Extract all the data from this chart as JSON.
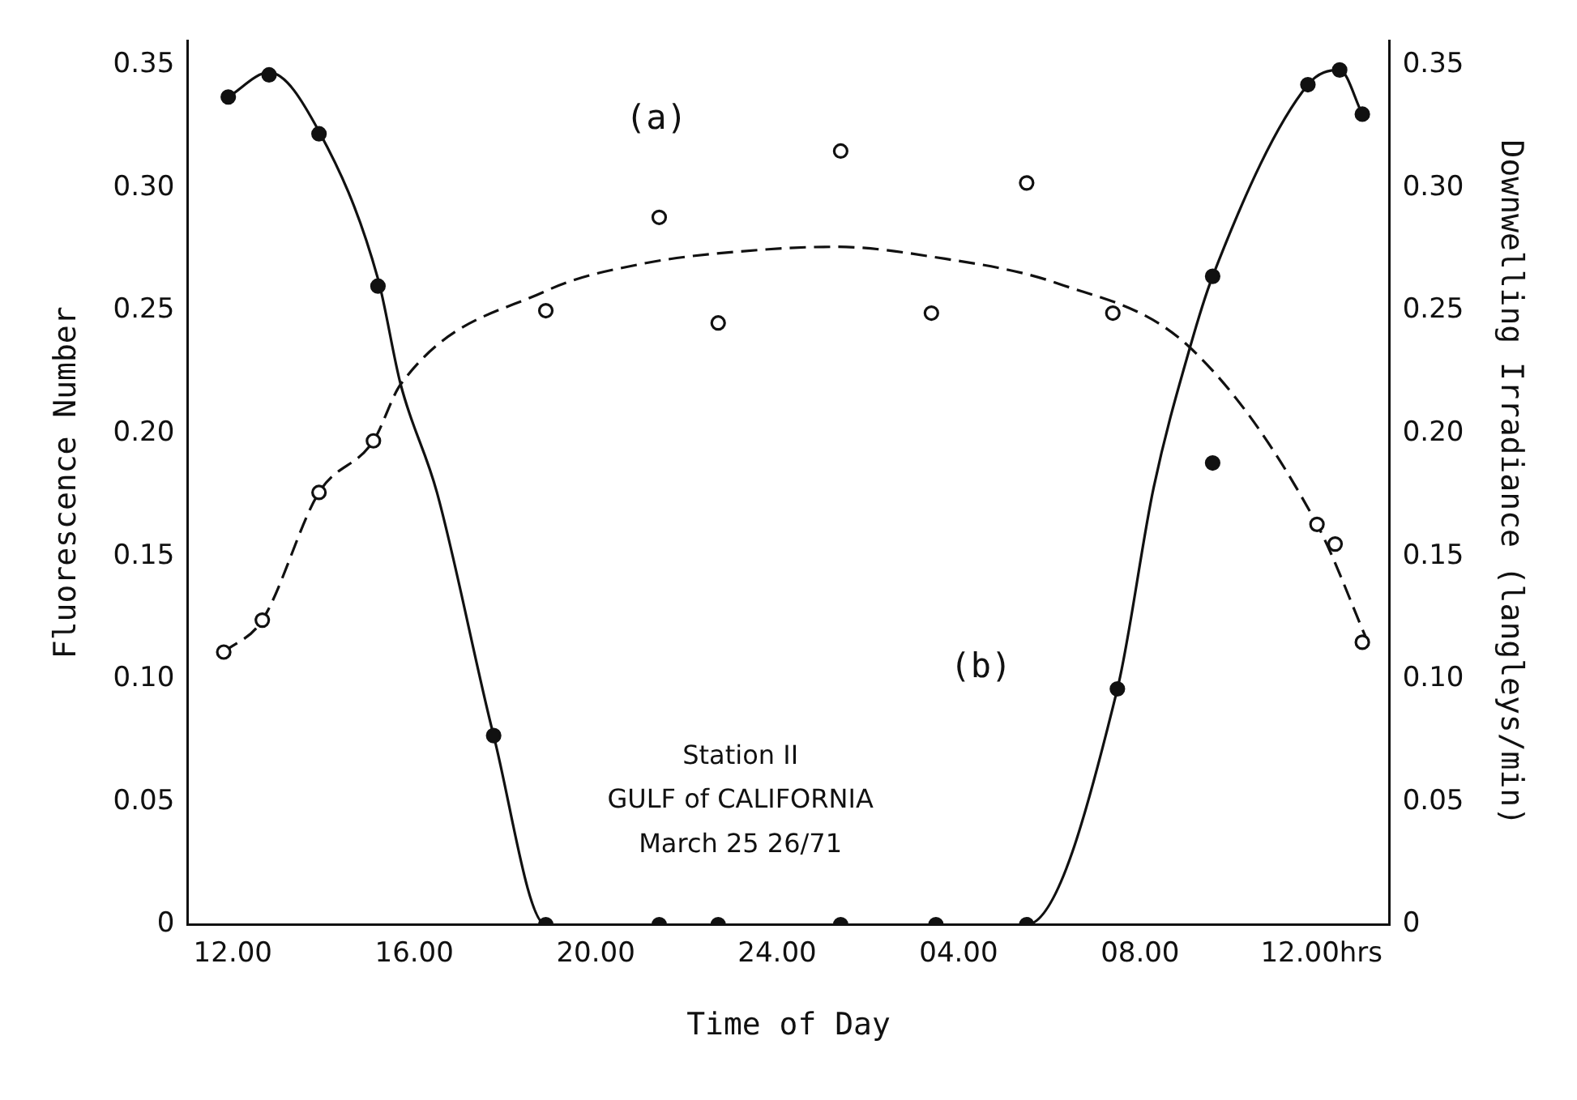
{
  "chart_data": {
    "type": "scatter",
    "xlabel": "Time of Day",
    "ylabel": "Fluorescence Number",
    "y2label": "Downwelling Irradiance (langleys/min)",
    "xlim": [
      "--03-25T11:00",
      "--03-26T13:30"
    ],
    "xticks": [
      {
        "value": "--03-25T12:00",
        "label": "12.00"
      },
      {
        "value": "--03-25T16:00",
        "label": "16.00"
      },
      {
        "value": "--03-25T20:00",
        "label": "20.00"
      },
      {
        "value": "--03-26T00:00",
        "label": "24.00"
      },
      {
        "value": "--03-26T04:00",
        "label": "04.00"
      },
      {
        "value": "--03-26T08:00",
        "label": "08.00"
      },
      {
        "value": "--03-26T12:00",
        "label": "12.00hrs"
      }
    ],
    "ylim": [
      0,
      0.36
    ],
    "yticks": [
      0,
      0.05,
      {
        "value": 0.1,
        "label": "0.10"
      },
      0.15,
      {
        "value": 0.2,
        "label": "0.20"
      },
      0.25,
      {
        "value": 0.3,
        "label": "0.30"
      },
      0.35
    ],
    "y2lim": [
      0,
      0.36
    ],
    "y2ticks": [
      0,
      0.05,
      {
        "value": 0.1,
        "label": "0.10"
      },
      0.15,
      {
        "value": 0.2,
        "label": "0.20"
      },
      0.25,
      {
        "value": 0.3,
        "label": "0.30"
      },
      0.35
    ],
    "grid": false,
    "legend": false,
    "series": [
      {
        "color": "#111111",
        "marker": "circle",
        "x": [
          "--03-25T11:48",
          "--03-25T12:39",
          "--03-25T13:54",
          "--03-25T15:06",
          "--03-25T18:54",
          "--03-25T21:24",
          "--03-25T22:42",
          "--03-26T01:24",
          "--03-26T03:24",
          "--03-26T05:30",
          "--03-26T07:24",
          "--03-26T11:54",
          "--03-26T12:18",
          "--03-26T12:54"
        ],
        "values": [
          0.111,
          0.124,
          0.176,
          0.197,
          0.25,
          0.288,
          0.245,
          0.315,
          0.249,
          0.302,
          0.249,
          0.163,
          0.155,
          0.115
        ]
      },
      {
        "type": "line",
        "color": "#111111",
        "marker": "none",
        "line_style": "dashed",
        "x": [
          "--03-25T11:48",
          "--03-25T12:39",
          "--03-25T13:54",
          "--03-25T15:06",
          "--03-25T15:42",
          "--03-25T18:54",
          "--03-25T21:00",
          "--03-25T23:48",
          "--03-26T01:18",
          "--03-26T03:24",
          "--03-26T06:12",
          "--03-26T09:06",
          "--03-26T11:54",
          "--03-26T13:00"
        ],
        "values": [
          0.111,
          0.124,
          0.176,
          0.197,
          0.22,
          0.258,
          0.269,
          0.275,
          0.276,
          0.272,
          0.261,
          0.235,
          0.163,
          0.116
        ]
      },
      {
        "axis": "y2",
        "color": "#111111",
        "marker": "circle",
        "x": [
          "--03-25T11:54",
          "--03-25T12:48",
          "--03-25T13:54",
          "--03-25T15:12",
          "--03-25T17:45",
          "--03-25T18:54",
          "--03-25T21:24",
          "--03-25T22:42",
          "--03-26T01:24",
          "--03-26T03:30",
          "--03-26T05:30",
          "--03-26T07:30",
          "--03-26T09:36",
          "--03-26T09:36",
          "--03-26T11:42",
          "--03-26T12:24",
          "--03-26T12:54"
        ],
        "values": [
          0.337,
          0.346,
          0.322,
          0.26,
          0.077,
          0,
          0,
          0,
          0,
          0,
          0,
          0.096,
          0.264,
          0.188,
          0.342,
          0.348,
          0.33
        ]
      },
      {
        "type": "line",
        "axis": "y2",
        "color": "#111111",
        "marker": "none",
        "line_style": "solid",
        "x": [
          "--03-25T11:54",
          "--03-25T12:48",
          "--03-25T13:54",
          "--03-25T15:12",
          "--03-25T15:42",
          "--03-25T16:30",
          "--03-25T17:45",
          "--03-25T18:54",
          "--03-26T05:30",
          "--03-26T07:30",
          "--03-26T08:18",
          "--03-26T09:06",
          "--03-26T09:36",
          "--03-26T11:42",
          "--03-26T12:24",
          "--03-26T12:54"
        ],
        "values": [
          0.337,
          0.347,
          0.323,
          0.263,
          0.22,
          0.176,
          0.077,
          0,
          0,
          0.096,
          0.178,
          0.235,
          0.264,
          0.342,
          0.348,
          0.33
        ]
      }
    ],
    "annotations": [
      "(a)",
      "(b)",
      "Station II",
      "GULF of CALIFORNIA",
      "March 25 26/71"
    ]
  }
}
